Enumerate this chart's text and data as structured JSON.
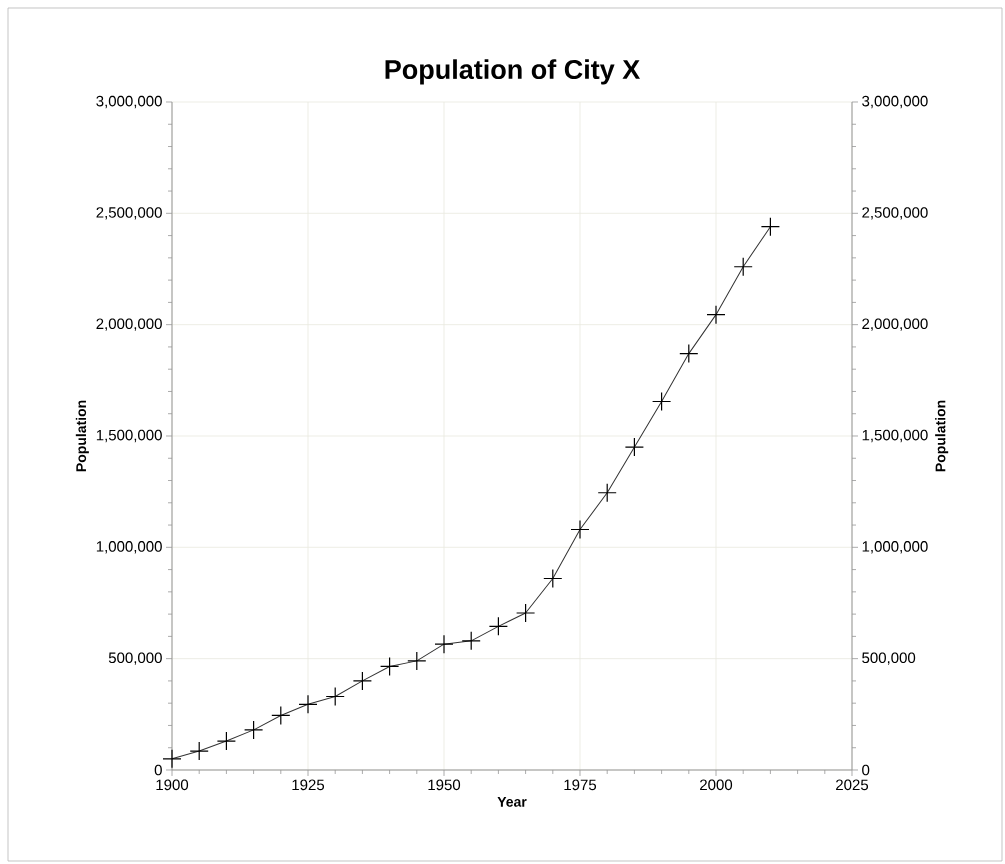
{
  "chart_data": {
    "type": "line",
    "title": "Population of City X",
    "xlabel": "Year",
    "ylabel": "Population",
    "y2label": "Population",
    "x": [
      1900,
      1905,
      1910,
      1915,
      1920,
      1925,
      1930,
      1935,
      1940,
      1945,
      1950,
      1955,
      1960,
      1965,
      1970,
      1975,
      1980,
      1985,
      1990,
      1995,
      2000,
      2005,
      2010
    ],
    "series": [
      {
        "color": "#333333",
        "values": [
          50000,
          85000,
          130000,
          180000,
          245000,
          295000,
          330000,
          400000,
          465000,
          490000,
          565000,
          580000,
          645000,
          705000,
          860000,
          1080000,
          1245000,
          1450000,
          1655000,
          1870000,
          2045000,
          2260000,
          2440000
        ]
      }
    ],
    "xlim": [
      1900,
      2025
    ],
    "xticks": [
      1900,
      1925,
      1950,
      1975,
      2000,
      2025
    ],
    "ylim": [
      0,
      3000000
    ],
    "yticks": [
      {
        "value": 0,
        "label": "0"
      },
      {
        "value": 500000,
        "label": "500,000"
      },
      {
        "value": 1000000,
        "label": "1,000,000"
      },
      {
        "value": 1500000,
        "label": "1,500,000"
      },
      {
        "value": 2000000,
        "label": "2,000,000"
      },
      {
        "value": 2500000,
        "label": "2,500,000"
      },
      {
        "value": 3000000,
        "label": "3,000,000"
      }
    ],
    "y2lim": [
      0,
      3000000
    ],
    "y2ticks": [
      {
        "value": 0,
        "label": "0"
      },
      {
        "value": 500000,
        "label": "500,000"
      },
      {
        "value": 1000000,
        "label": "1,000,000"
      },
      {
        "value": 1500000,
        "label": "1,500,000"
      },
      {
        "value": 2000000,
        "label": "2,000,000"
      },
      {
        "value": 2500000,
        "label": "2,500,000"
      },
      {
        "value": 3000000,
        "label": "3,000,000"
      }
    ],
    "grid": true,
    "marker": "cross",
    "line_style": "solid"
  }
}
